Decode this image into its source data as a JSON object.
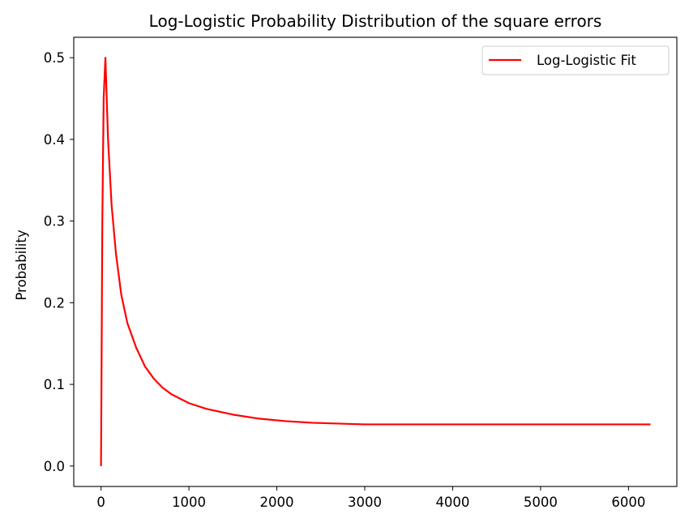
{
  "chart_data": {
    "type": "line",
    "title": "Log-Logistic Probability Distribution of the square errors",
    "xlabel": "",
    "ylabel": "Probability",
    "xlim": [
      -310,
      6550
    ],
    "ylim": [
      -0.025,
      0.525
    ],
    "xticks": [
      0,
      1000,
      2000,
      3000,
      4000,
      5000,
      6000
    ],
    "yticks": [
      0.0,
      0.1,
      0.2,
      0.3,
      0.4,
      0.5
    ],
    "ytick_labels": [
      "0.0",
      "0.1",
      "0.2",
      "0.3",
      "0.4",
      "0.5"
    ],
    "grid": false,
    "legend_position": "top-right",
    "series": [
      {
        "name": "Log-Logistic Fit",
        "color": "#ff0000",
        "x": [
          0,
          15,
          30,
          50,
          80,
          120,
          170,
          230,
          300,
          400,
          500,
          600,
          700,
          800,
          1000,
          1200,
          1500,
          1800,
          2100,
          2400,
          2700,
          3000,
          3500,
          4000,
          4500,
          5000,
          5500,
          6000,
          6250
        ],
        "y": [
          0.0,
          0.3,
          0.45,
          0.5,
          0.4,
          0.32,
          0.26,
          0.21,
          0.175,
          0.145,
          0.122,
          0.107,
          0.096,
          0.088,
          0.077,
          0.07,
          0.063,
          0.058,
          0.055,
          0.053,
          0.052,
          0.051,
          0.051,
          0.051,
          0.051,
          0.051,
          0.051,
          0.051,
          0.051
        ]
      }
    ]
  }
}
